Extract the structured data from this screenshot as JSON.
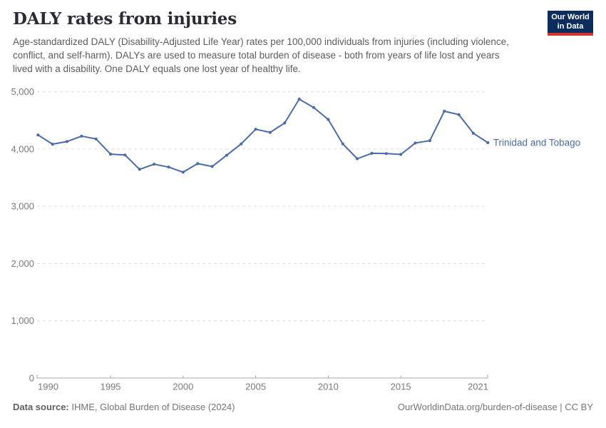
{
  "header": {
    "title": "DALY rates from injuries",
    "subtitle": "Age-standardized DALY (Disability-Adjusted Life Year) rates per 100,000 individuals from injuries (including violence, conflict, and self-harm). DALYs are used to measure total burden of disease - both from years of life lost and years lived with a disability. One DALY equals one lost year of healthy life."
  },
  "logo": {
    "line1": "Our World",
    "line2": "in Data",
    "bg_color": "#0d2e5c",
    "bar_color": "#d0342c"
  },
  "chart_data": {
    "type": "line",
    "title": "DALY rates from injuries",
    "x": [
      1990,
      1991,
      1992,
      1993,
      1994,
      1995,
      1996,
      1997,
      1998,
      1999,
      2000,
      2001,
      2002,
      2003,
      2004,
      2005,
      2006,
      2007,
      2008,
      2009,
      2010,
      2011,
      2012,
      2013,
      2014,
      2015,
      2016,
      2017,
      2018,
      2019,
      2020,
      2021
    ],
    "series": [
      {
        "name": "Trinidad and Tobago",
        "color": "#4c6ba9",
        "values": [
          4245,
          4085,
          4130,
          4225,
          4175,
          3910,
          3895,
          3645,
          3735,
          3685,
          3595,
          3745,
          3695,
          3890,
          4090,
          4345,
          4290,
          4455,
          4870,
          4725,
          4515,
          4090,
          3830,
          3925,
          3920,
          3905,
          4105,
          4145,
          4660,
          4600,
          4275,
          4110
        ]
      }
    ],
    "xlabel": "",
    "ylabel": "",
    "ylim": [
      0,
      5000
    ],
    "yticks": [
      0,
      1000,
      2000,
      3000,
      4000,
      5000
    ],
    "xticks": [
      1990,
      1995,
      2000,
      2005,
      2010,
      2015,
      2021
    ],
    "grid": "horizontal-dashed",
    "legend_position": "end-of-line-label",
    "colors": {
      "grid": "#dcdcdc",
      "axis": "#a8a8a8",
      "tick_text": "#7a7a7a"
    }
  },
  "footer": {
    "source_label": "Data source:",
    "source_value": "IHME, Global Burden of Disease (2024)",
    "link_text": "OurWorldinData.org/burden-of-disease | CC BY"
  }
}
